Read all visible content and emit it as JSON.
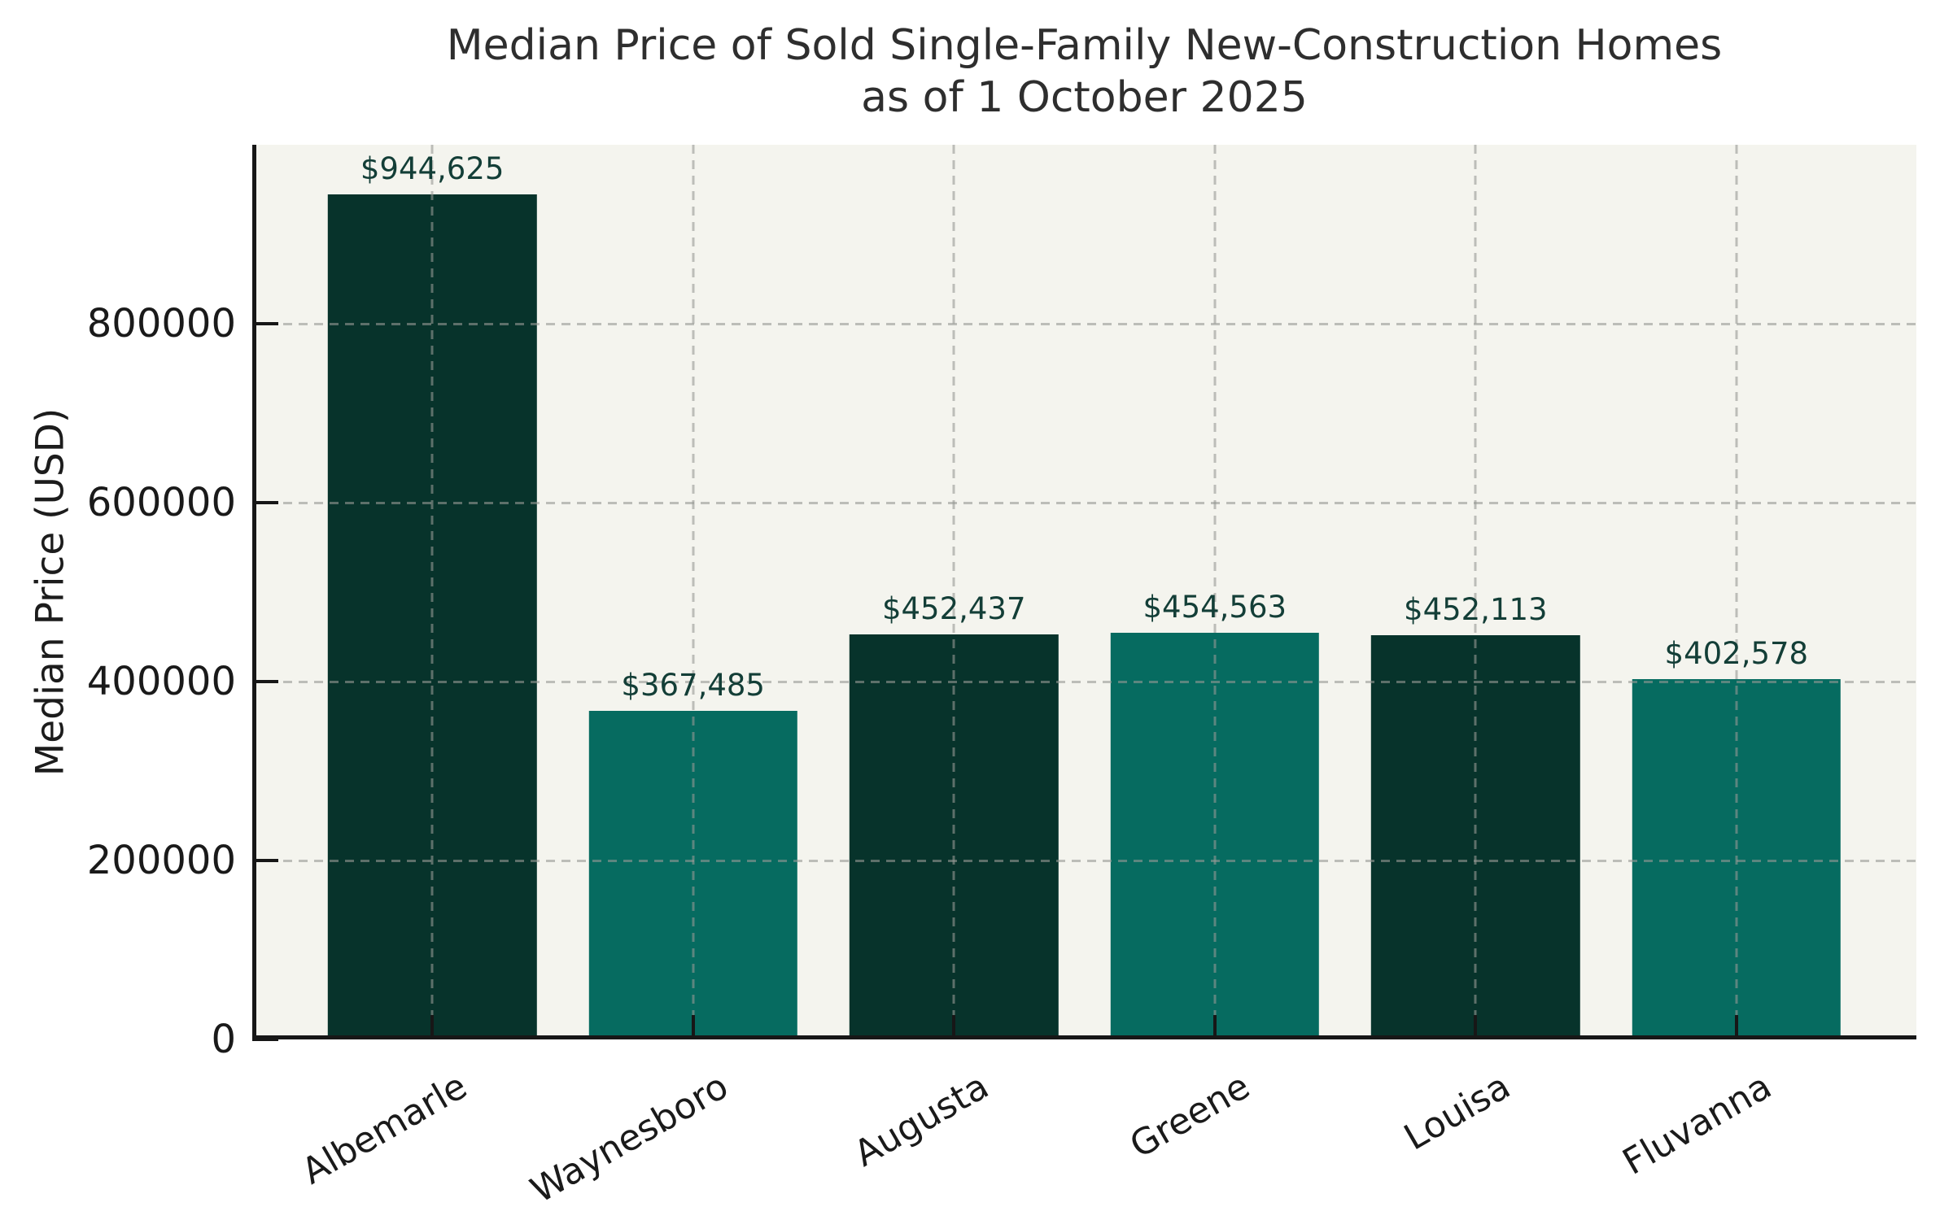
{
  "title": {
    "line1": "Median Price of Sold Single-Family New-Construction Homes",
    "line2": "as of 1 October 2025"
  },
  "chart_data": {
    "type": "bar",
    "title": "Median Price of Sold Single-Family New-Construction Homes as of 1 October 2025",
    "xlabel": "",
    "ylabel": "Median Price (USD)",
    "categories": [
      "Albemarle",
      "Waynesboro",
      "Augusta",
      "Greene",
      "Louisa",
      "Fluvanna"
    ],
    "values": [
      944625,
      367485,
      452437,
      454563,
      452113,
      402578
    ],
    "bar_value_labels": [
      "$944,625",
      "$367,485",
      "$452,437",
      "$454,563",
      "$452,113",
      "$402,578"
    ],
    "bar_colors": [
      "#07332b",
      "#066b60",
      "#07332b",
      "#066b60",
      "#07332b",
      "#066b60"
    ],
    "ylim": [
      0,
      1000000
    ],
    "xlim": [
      -0.69,
      5.69
    ],
    "bar_width_units": 0.8,
    "yticks": [
      0,
      200000,
      400000,
      600000,
      800000
    ],
    "ytick_labels": [
      "0",
      "200000",
      "400000",
      "600000",
      "800000"
    ],
    "grid": "dashed",
    "grid_above_bars": true,
    "legend_position": "none",
    "colors": {
      "axes_background": "#f4f4ee",
      "figure_background": "#ffffff",
      "grid_line": "rgba(150, 152, 148, 0.6)",
      "spine": "#171717",
      "tick_mark": "#171717",
      "tick_label": "#1a1a1a",
      "title_text": "#2e2e2e",
      "value_label_text": "#133e37"
    }
  }
}
